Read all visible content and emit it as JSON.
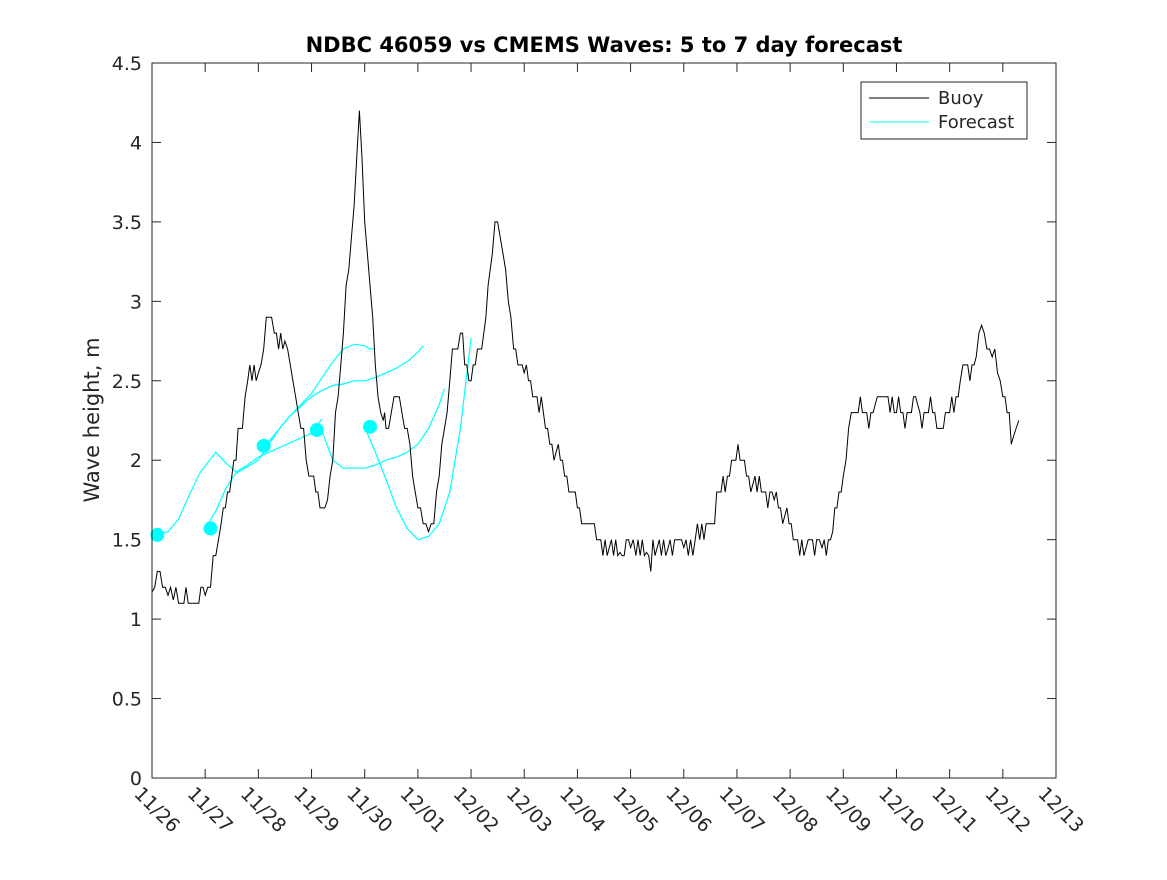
{
  "chart_data": {
    "type": "line",
    "title": "NDBC 46059 vs CMEMS Waves: 5 to 7 day forecast",
    "xlabel": "",
    "ylabel": "Wave height, m",
    "xlim": [
      0,
      17
    ],
    "ylim": [
      0,
      4.5
    ],
    "yticks": [
      0,
      0.5,
      1,
      1.5,
      2,
      2.5,
      3,
      3.5,
      4,
      4.5
    ],
    "ytick_labels": [
      "0",
      "0.5",
      "1",
      "1.5",
      "2",
      "2.5",
      "3",
      "3.5",
      "4",
      "4.5"
    ],
    "xtick_labels": [
      "11/26",
      "11/27",
      "11/28",
      "11/29",
      "11/30",
      "12/01",
      "12/02",
      "12/03",
      "12/04",
      "12/05",
      "12/06",
      "12/07",
      "12/08",
      "12/09",
      "12/10",
      "12/11",
      "12/12",
      "12/13"
    ],
    "legend": {
      "placement": "top-right",
      "entries": [
        "Buoy",
        "Forecast"
      ]
    },
    "colors": {
      "buoy": "#000000",
      "forecast": "#00ffff",
      "axis": "#262626"
    },
    "grid": false,
    "buoy": {
      "name": "Buoy",
      "x": [
        0,
        0.1,
        0.2,
        0.3,
        0.4,
        0.5,
        0.6,
        0.8,
        1.0,
        1.1,
        1.2,
        1.3,
        1.5,
        1.7,
        1.8,
        2.0,
        2.1,
        2.2,
        2.3,
        2.5,
        2.6,
        2.7,
        2.8,
        2.9,
        3.0,
        3.2,
        3.3,
        3.4,
        3.5,
        3.6,
        3.7,
        3.8,
        3.9,
        4.0,
        4.1,
        4.2,
        4.25,
        4.35,
        4.4,
        4.5,
        4.6,
        4.7,
        4.8,
        4.9,
        5.0,
        5.1,
        5.2,
        5.3,
        5.4,
        5.5,
        5.6,
        5.7,
        5.8,
        6.0,
        6.2,
        6.4,
        6.5,
        6.6,
        6.7,
        6.8,
        7.0,
        7.2,
        7.4,
        7.6,
        7.8,
        8.0,
        8.2,
        8.4,
        8.6,
        8.8,
        9.0,
        9.1,
        9.3,
        9.5,
        9.7,
        10.0,
        10.3,
        10.5,
        10.7,
        10.9,
        11.1,
        11.3,
        11.5,
        11.7,
        11.9,
        12.1,
        12.3,
        12.5,
        12.6,
        12.8,
        13.0,
        13.1,
        13.2,
        13.4,
        13.6,
        13.8,
        14.0,
        14.2,
        14.4,
        14.6,
        14.8,
        15.0,
        15.2,
        15.3,
        15.5,
        15.6,
        15.7,
        15.8,
        15.9,
        16.0,
        16.2,
        16.3
      ],
      "values": [
        1.17,
        1.3,
        1.2,
        1.15,
        1.12,
        1.1,
        1.1,
        1.1,
        1.15,
        1.2,
        1.4,
        1.6,
        1.9,
        2.2,
        2.5,
        2.55,
        2.7,
        2.9,
        2.8,
        2.75,
        2.6,
        2.4,
        2.2,
        2.0,
        1.9,
        1.7,
        1.75,
        2.0,
        2.4,
        2.8,
        3.2,
        3.6,
        4.2,
        3.5,
        3.1,
        2.6,
        2.4,
        2.25,
        2.2,
        2.3,
        2.4,
        2.3,
        2.2,
        1.9,
        1.7,
        1.6,
        1.55,
        1.6,
        1.9,
        2.2,
        2.5,
        2.7,
        2.8,
        2.5,
        2.7,
        3.3,
        3.5,
        3.3,
        3.0,
        2.7,
        2.55,
        2.4,
        2.2,
        2.05,
        1.9,
        1.7,
        1.6,
        1.5,
        1.45,
        1.42,
        1.45,
        1.4,
        1.42,
        1.45,
        1.44,
        1.45,
        1.5,
        1.6,
        1.8,
        2.0,
        2.0,
        1.85,
        1.8,
        1.75,
        1.65,
        1.5,
        1.45,
        1.5,
        1.45,
        1.55,
        1.9,
        2.2,
        2.3,
        2.3,
        2.35,
        2.4,
        2.3,
        2.3,
        2.35,
        2.3,
        2.2,
        2.3,
        2.5,
        2.6,
        2.65,
        2.85,
        2.7,
        2.65,
        2.55,
        2.4,
        2.15,
        2.25
      ]
    },
    "forecast": {
      "name": "Forecast",
      "segments": [
        {
          "x": [
            0,
            0.3,
            0.5,
            0.7,
            0.9,
            1.2,
            1.4,
            1.6,
            1.8,
            2.0,
            2.2,
            2.4,
            2.6,
            2.8,
            3.0,
            3.2,
            3.4,
            3.6,
            3.8,
            4.0,
            4.1,
            4.2
          ],
          "values": [
            1.53,
            1.55,
            1.63,
            1.78,
            1.92,
            2.05,
            1.98,
            1.92,
            1.96,
            2.0,
            2.1,
            2.2,
            2.28,
            2.35,
            2.42,
            2.52,
            2.62,
            2.7,
            2.73,
            2.72,
            2.7,
            2.7
          ]
        },
        {
          "x": [
            1.0,
            1.2,
            1.4,
            1.6,
            1.8,
            2.0,
            2.2,
            2.4,
            2.6,
            2.8,
            3.0,
            3.1,
            3.2
          ],
          "values": [
            1.57,
            1.68,
            1.83,
            1.93,
            1.97,
            2.02,
            2.05,
            2.08,
            2.11,
            2.14,
            2.17,
            2.22,
            2.26
          ]
        },
        {
          "x": [
            2.0,
            2.2,
            2.4,
            2.6,
            2.8,
            3.0,
            3.2,
            3.4,
            3.6,
            3.8,
            4.0,
            4.2,
            4.4,
            4.6,
            4.8,
            5.0,
            5.1
          ],
          "values": [
            2.09,
            2.12,
            2.2,
            2.28,
            2.34,
            2.4,
            2.44,
            2.47,
            2.48,
            2.5,
            2.5,
            2.52,
            2.55,
            2.58,
            2.62,
            2.68,
            2.72
          ]
        },
        {
          "x": [
            3.0,
            3.2,
            3.4,
            3.6,
            3.8,
            4.0,
            4.2,
            4.4,
            4.6,
            4.8,
            5.0,
            5.2,
            5.4,
            5.5
          ],
          "values": [
            2.19,
            2.18,
            2.0,
            1.95,
            1.95,
            1.95,
            1.97,
            2.0,
            2.02,
            2.05,
            2.1,
            2.2,
            2.35,
            2.45
          ]
        },
        {
          "x": [
            4.0,
            4.2,
            4.4,
            4.6,
            4.8,
            5.0,
            5.2,
            5.4,
            5.6,
            5.8,
            6.0
          ],
          "values": [
            2.21,
            2.05,
            1.88,
            1.7,
            1.57,
            1.5,
            1.52,
            1.6,
            1.8,
            2.2,
            2.77
          ]
        }
      ],
      "markers": {
        "x": [
          0.1,
          1.1,
          2.1,
          3.1,
          4.1
        ],
        "values": [
          1.53,
          1.57,
          2.09,
          2.19,
          2.21
        ]
      }
    }
  }
}
